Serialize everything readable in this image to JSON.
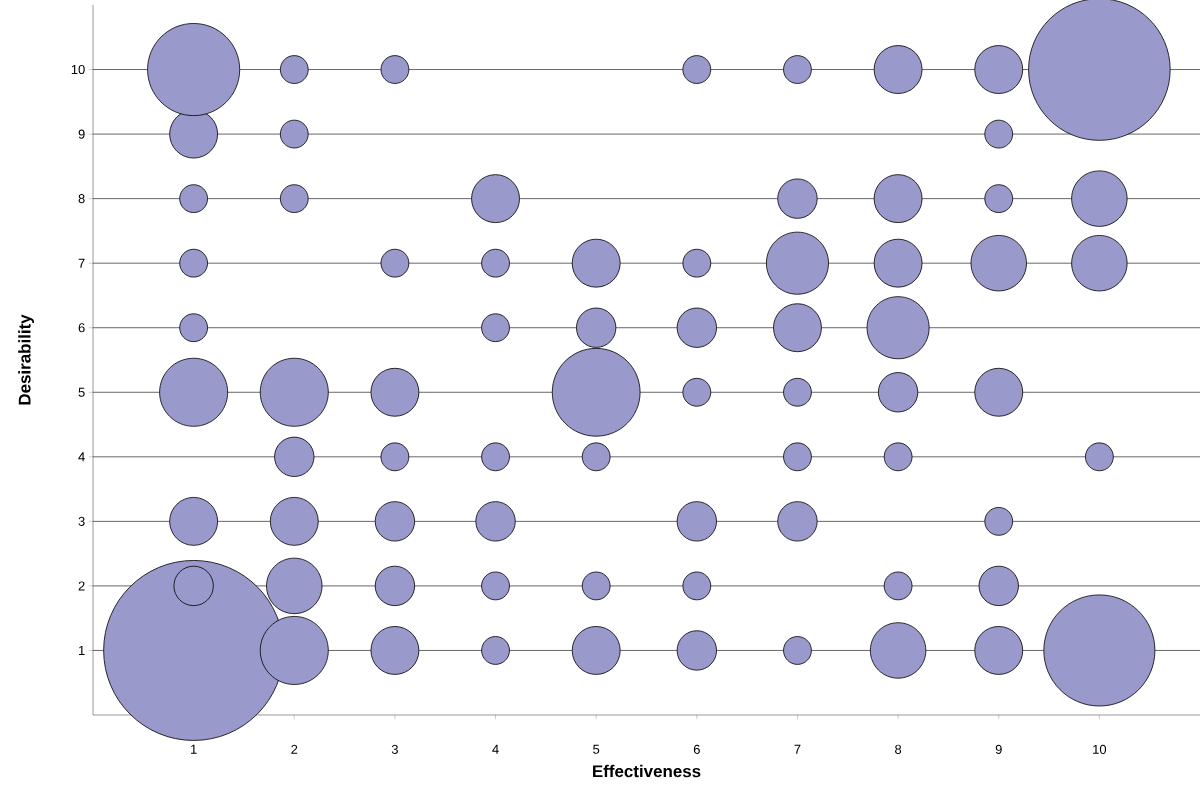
{
  "chart_data": {
    "type": "bubble",
    "xlabel": "Effectiveness",
    "ylabel": "Desirability",
    "x": [
      1,
      2,
      3,
      4,
      5,
      6,
      7,
      8,
      9,
      10,
      1,
      2,
      3,
      4,
      5,
      6,
      8,
      9,
      1,
      2,
      3,
      4,
      6,
      7,
      9,
      2,
      3,
      4,
      5,
      7,
      8,
      10,
      1,
      2,
      3,
      5,
      6,
      7,
      8,
      9,
      1,
      4,
      5,
      6,
      7,
      8,
      1,
      3,
      4,
      5,
      6,
      7,
      8,
      9,
      10,
      1,
      2,
      4,
      7,
      8,
      9,
      10,
      1,
      2,
      9,
      1,
      2,
      3,
      6,
      7,
      8,
      9,
      10
    ],
    "values": [
      1,
      1,
      1,
      1,
      1,
      1,
      1,
      1,
      1,
      1,
      2,
      2,
      2,
      2,
      2,
      2,
      2,
      2,
      3,
      3,
      3,
      3,
      3,
      3,
      3,
      4,
      4,
      4,
      4,
      4,
      4,
      4,
      5,
      5,
      5,
      5,
      5,
      5,
      5,
      5,
      6,
      6,
      6,
      6,
      6,
      6,
      7,
      7,
      7,
      7,
      7,
      7,
      7,
      7,
      7,
      8,
      8,
      8,
      8,
      8,
      8,
      8,
      9,
      9,
      9,
      10,
      10,
      10,
      10,
      10,
      10,
      10,
      10
    ],
    "sizes": [
      1,
      0.143,
      0.071,
      0.024,
      0.071,
      0.048,
      0.024,
      0.095,
      0.071,
      0.381,
      0.048,
      0.095,
      0.048,
      0.024,
      0.024,
      0.024,
      0.024,
      0.048,
      0.071,
      0.071,
      0.048,
      0.048,
      0.048,
      0.048,
      0.024,
      0.048,
      0.024,
      0.024,
      0.024,
      0.024,
      0.024,
      0.024,
      0.143,
      0.143,
      0.071,
      0.238,
      0.024,
      0.024,
      0.048,
      0.071,
      0.024,
      0.024,
      0.048,
      0.048,
      0.071,
      0.119,
      0.024,
      0.024,
      0.024,
      0.071,
      0.024,
      0.119,
      0.071,
      0.095,
      0.095,
      0.024,
      0.024,
      0.071,
      0.048,
      0.071,
      0.024,
      0.095,
      0.071,
      0.024,
      0.024,
      0.262,
      0.024,
      0.024,
      0.024,
      0.024,
      0.071,
      0.071,
      0.619
    ],
    "color": "#9999cc",
    "grid": "y",
    "xlim": [
      0,
      11
    ],
    "ylim": [
      0,
      11
    ],
    "xticks": [
      1,
      2,
      3,
      4,
      5,
      6,
      7,
      8,
      9,
      10
    ],
    "yticks": [
      1,
      2,
      3,
      4,
      5,
      6,
      7,
      8,
      9,
      10
    ]
  }
}
